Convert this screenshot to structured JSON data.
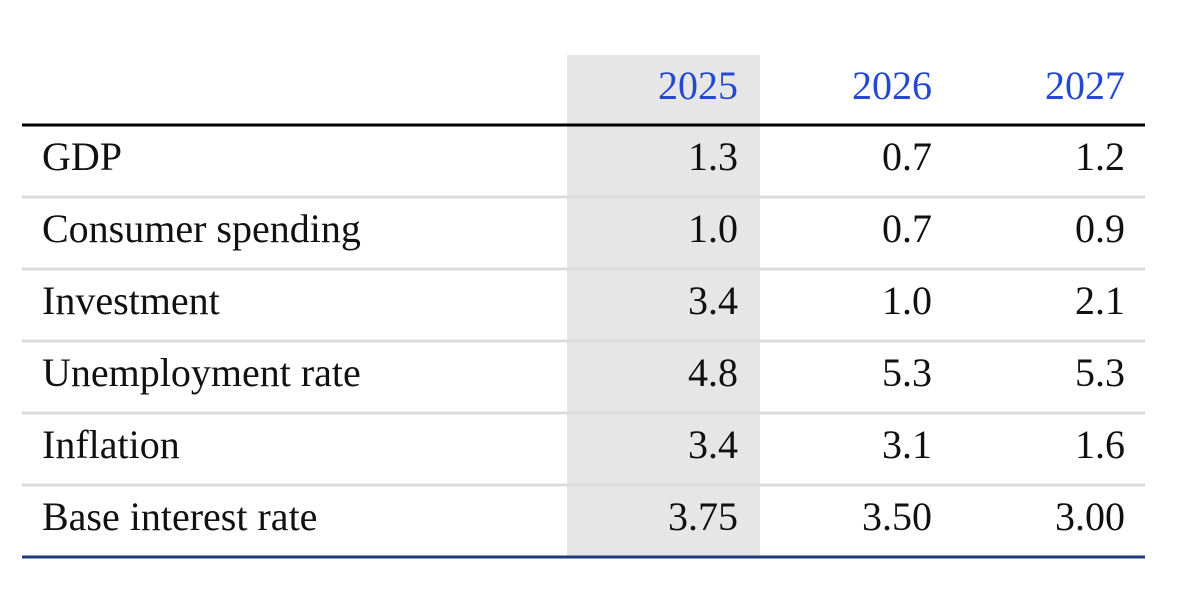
{
  "table": {
    "columns": [
      "2025",
      "2026",
      "2027"
    ],
    "rows": [
      {
        "label": "GDP",
        "values": [
          "1.3",
          "0.7",
          "1.2"
        ]
      },
      {
        "label": "Consumer spending",
        "values": [
          "1.0",
          "0.7",
          "0.9"
        ]
      },
      {
        "label": "Investment",
        "values": [
          "3.4",
          "1.0",
          "2.1"
        ]
      },
      {
        "label": "Unemployment rate",
        "values": [
          "4.8",
          "5.3",
          "5.3"
        ]
      },
      {
        "label": "Inflation",
        "values": [
          "3.4",
          "3.1",
          "1.6"
        ]
      },
      {
        "label": "Base interest rate",
        "values": [
          "3.75",
          "3.50",
          "3.00"
        ]
      }
    ]
  }
}
